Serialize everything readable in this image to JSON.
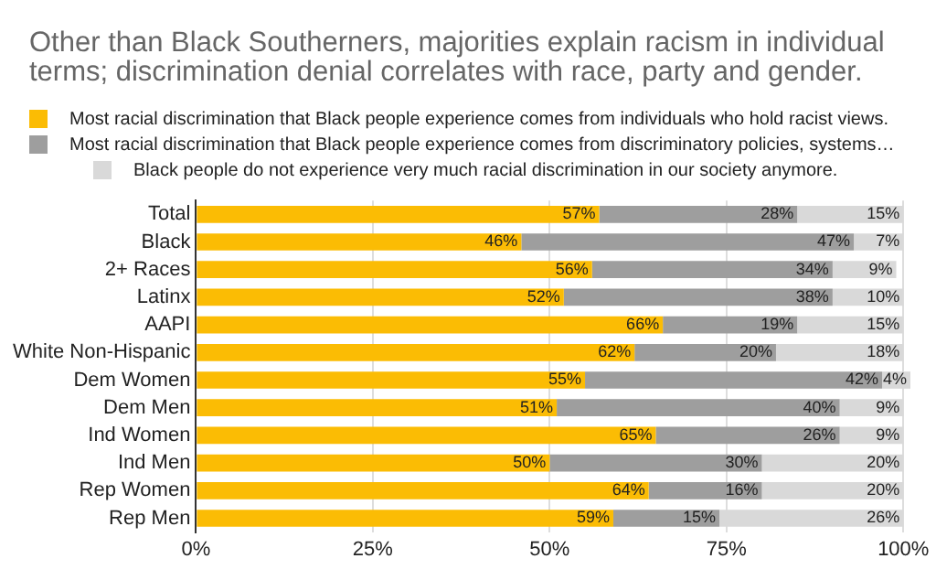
{
  "chart_data": {
    "type": "bar",
    "orientation": "horizontal",
    "stacked": true,
    "title": "Other than Black Southerners, majorities explain racism in individual terms; discrimination denial correlates with race, party and gender.",
    "categories": [
      "Total",
      "Black",
      "2+ Races",
      "Latinx",
      "AAPI",
      "White Non-Hispanic",
      "Dem Women",
      "Dem Men",
      "Ind Women",
      "Ind Men",
      "Rep Women",
      "Rep Men"
    ],
    "series": [
      {
        "name": "Most racial discrimination that Black people experience comes from individuals who hold racist views.",
        "color": "#fbbc04",
        "values": [
          57,
          46,
          56,
          52,
          66,
          62,
          55,
          51,
          65,
          50,
          64,
          59
        ],
        "value_labels": [
          "57%",
          "46%",
          "56%",
          "52%",
          "66%",
          "62%",
          "55%",
          "51%",
          "65%",
          "50%",
          "64%",
          "59%"
        ]
      },
      {
        "name": "Most racial discrimination that Black people experience comes from discriminatory policies, systems…",
        "color": "#9e9e9e",
        "values": [
          28,
          47,
          34,
          38,
          19,
          20,
          42,
          40,
          26,
          30,
          16,
          15
        ],
        "value_labels": [
          "28%",
          "47%",
          "34%",
          "38%",
          "19%",
          "20%",
          "42%",
          "40%",
          "26%",
          "30%",
          "16%",
          "15%"
        ]
      },
      {
        "name": "Black people do not experience very much racial discrimination in our society anymore.",
        "color": "#d9d9d9",
        "values": [
          15,
          7,
          9,
          10,
          15,
          18,
          4,
          9,
          9,
          20,
          20,
          26
        ],
        "value_labels": [
          "15%",
          "7%",
          "9%",
          "10%",
          "15%",
          "18%",
          "4%",
          "9%",
          "9%",
          "20%",
          "20%",
          "26%"
        ]
      }
    ],
    "xlim": [
      0,
      101
    ],
    "xticks": [
      {
        "value": 0,
        "label": "0%"
      },
      {
        "value": 25,
        "label": "25%"
      },
      {
        "value": 50,
        "label": "50%"
      },
      {
        "value": 75,
        "label": "75%"
      },
      {
        "value": 100,
        "label": "100%"
      }
    ],
    "grid": "x",
    "legend": "top left"
  }
}
